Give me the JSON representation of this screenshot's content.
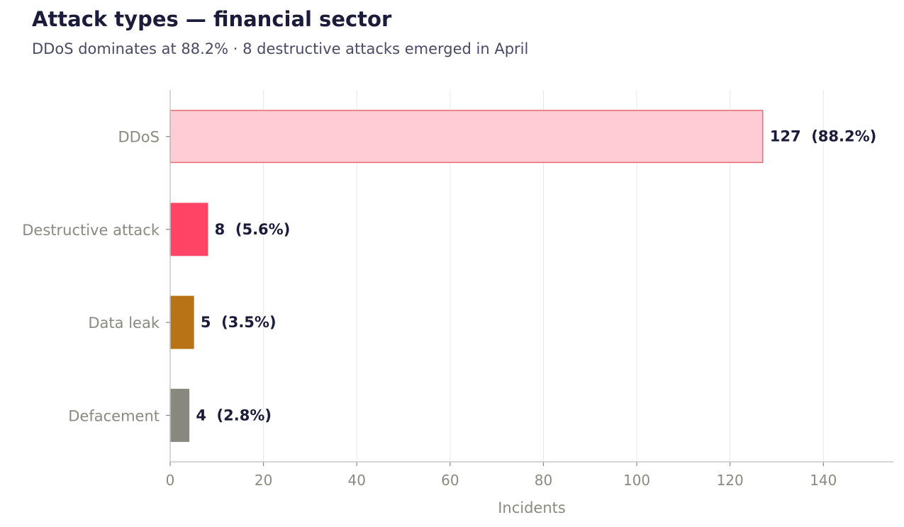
{
  "chart_data": {
    "type": "bar",
    "orientation": "horizontal",
    "title": "Attack types — financial sector",
    "subtitle": "DDoS dominates at 88.2% · 8 destructive attacks emerged in April",
    "xlabel": "Incidents",
    "ylabel": "",
    "xlim": [
      0,
      155
    ],
    "xticks": [
      0,
      20,
      40,
      60,
      80,
      100,
      120,
      140
    ],
    "grid": true,
    "legend": "none",
    "categories": [
      "DDoS",
      "Destructive attack",
      "Data leak",
      "Defacement"
    ],
    "values": [
      127,
      8,
      5,
      4
    ],
    "percent_labels": [
      "(88.2%)",
      "(5.6%)",
      "(3.5%)",
      "(2.8%)"
    ],
    "bar_colors": [
      "#ffccd5",
      "#ff4466",
      "#b87316",
      "#88887e"
    ],
    "bar_edge_colors": [
      "#e86a78",
      "#ff4466",
      "#b87316",
      "#88887e"
    ]
  }
}
